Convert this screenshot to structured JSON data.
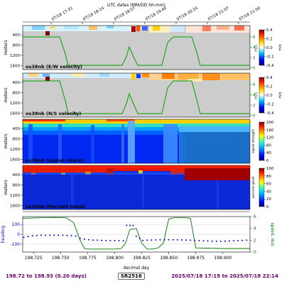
{
  "chart_data": {
    "type": "multi-panel",
    "title": "UTC dates (MM/DD hh:mm)",
    "top_ticks": [
      "07/18 17:31",
      "07/18 18:14",
      "07/18 18:57",
      "07/18 19:40",
      "07/18 20:24",
      "07/18 21:07",
      "07/18 21:50"
    ],
    "depth_ticks": [
      "400",
      "800",
      "1200",
      "1600"
    ],
    "depth_axis_label": "meters",
    "speed_axis_label": "m/s",
    "panels": [
      {
        "label": "os38nb (E/W velocity)",
        "colorbar_label": "m/s",
        "colorbar_ticks": [
          "0.4",
          "0.2",
          "0.0",
          "-0.2",
          "-0.4"
        ],
        "speed_ticks": [
          "6",
          "4",
          "2",
          "0"
        ]
      },
      {
        "label": "os38nb (N/S velocity)",
        "colorbar_label": "m/s",
        "colorbar_ticks": [
          "0.4",
          "0.2",
          "0.0",
          "-0.2",
          "-0.4"
        ],
        "speed_ticks": [
          "6",
          "4",
          "2",
          "0"
        ]
      },
      {
        "label": "os38nb (signal return)",
        "colorbar_label": "signal strength",
        "colorbar_ticks": [
          "200",
          "160",
          "120",
          "80",
          "40",
          "0"
        ]
      },
      {
        "label": "os38nb (Percent Good)",
        "colorbar_label": "percent good",
        "colorbar_ticks": [
          "100",
          "80",
          "60",
          "40",
          "20",
          "0"
        ]
      }
    ],
    "bottom_panel": {
      "xlabel": "decimal day",
      "x_ticks": [
        "198.725",
        "198.750",
        "198.775",
        "198.800",
        "198.825",
        "198.850",
        "198.875",
        "198.900"
      ],
      "heading_label": "heading",
      "heading_ticks": [
        "100",
        "0",
        "-100"
      ],
      "heading_ylim": [
        -180,
        180
      ],
      "speed_label": "speed, m/s",
      "speed_ticks": [
        "6",
        "4",
        "2",
        "0"
      ],
      "speed_ylim": [
        0,
        6
      ],
      "heading_color": "#0000cc",
      "speed_color": "#007700",
      "xlim": [
        198.715,
        198.925
      ],
      "speed_series": {
        "x": [
          198.715,
          198.73,
          198.745,
          198.755,
          198.762,
          198.768,
          198.772,
          198.776,
          198.79,
          198.8,
          198.806,
          198.81,
          198.814,
          198.82,
          198.825,
          198.83,
          198.835,
          198.84,
          198.845,
          198.85,
          198.855,
          198.86,
          198.865,
          198.87,
          198.875,
          198.9,
          198.925
        ],
        "y": [
          5.7,
          5.8,
          5.85,
          5.8,
          5.0,
          2.0,
          0.6,
          0.5,
          0.5,
          0.5,
          0.6,
          1.5,
          3.8,
          4.0,
          1.5,
          0.5,
          0.5,
          0.7,
          1.5,
          5.6,
          5.8,
          5.8,
          5.8,
          5.7,
          0.7,
          0.6,
          0.6
        ]
      },
      "heading_series": {
        "x": [
          198.716,
          198.72,
          198.724,
          198.728,
          198.732,
          198.736,
          198.74,
          198.744,
          198.748,
          198.752,
          198.756,
          198.76,
          198.764,
          198.768,
          198.772,
          198.776,
          198.78,
          198.784,
          198.788,
          198.792,
          198.796,
          198.8,
          198.804,
          198.808,
          198.811,
          198.814,
          198.817,
          198.82,
          198.823,
          198.826,
          198.83,
          198.834,
          198.838,
          198.842,
          198.846,
          198.85,
          198.854,
          198.858,
          198.862,
          198.866,
          198.87,
          198.874,
          198.878,
          198.882,
          198.886,
          198.89,
          198.894,
          198.898,
          198.902,
          198.906,
          198.91,
          198.914,
          198.918,
          198.922
        ],
        "y": [
          -30,
          -22,
          -15,
          -12,
          -10,
          -10,
          -10,
          -10,
          -10,
          -10,
          -12,
          -14,
          -18,
          -40,
          -50,
          -55,
          -58,
          -60,
          -62,
          -63,
          -64,
          -65,
          -65,
          -66,
          90,
          90,
          88,
          -20,
          -40,
          -62,
          -60,
          -58,
          -57,
          -56,
          -56,
          -55,
          -55,
          -56,
          -57,
          -58,
          -60,
          -62,
          -64,
          -66,
          -68,
          -70,
          -70,
          -70,
          -70,
          -68,
          -66,
          -64,
          -62,
          -60
        ]
      }
    }
  },
  "footer": {
    "range_text": "198.72 to 198.93 (0.20 days)",
    "cruise": "SR2516",
    "time_text": "2025/07/18 17:19 to 2025/07/18 22:14"
  }
}
